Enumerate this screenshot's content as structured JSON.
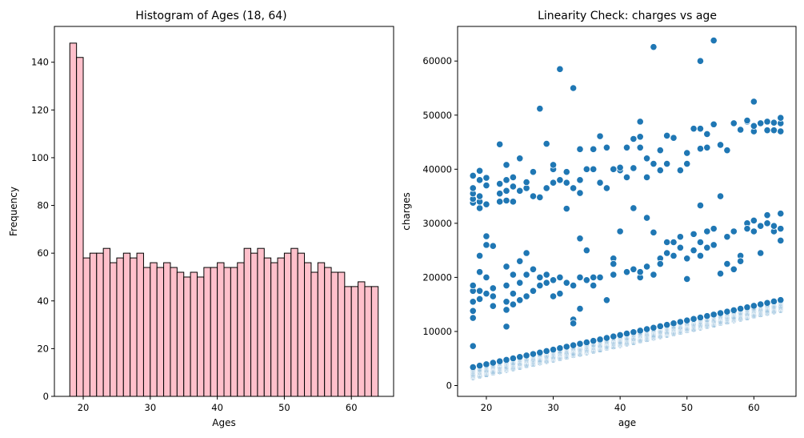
{
  "chart_data": [
    {
      "type": "bar",
      "title": "Histogram of Ages (18, 64)",
      "xlabel": "Ages",
      "ylabel": "Frequency",
      "xlim": [
        15.7,
        66.3
      ],
      "ylim": [
        0,
        155
      ],
      "xticks": [
        20,
        30,
        40,
        50,
        60
      ],
      "yticks": [
        0,
        20,
        40,
        60,
        80,
        100,
        120,
        140
      ],
      "bins": {
        "start": 18,
        "end": 64,
        "count": 46
      },
      "values": [
        148,
        142,
        58,
        60,
        60,
        62,
        56,
        58,
        60,
        58,
        60,
        54,
        56,
        54,
        56,
        54,
        52,
        50,
        52,
        50,
        54,
        54,
        56,
        54,
        54,
        56,
        62,
        60,
        62,
        58,
        56,
        58,
        60,
        62,
        60,
        56,
        52,
        56,
        54,
        52,
        52,
        46,
        46,
        48,
        46,
        46
      ],
      "bar_color": "#ffc0cb",
      "edge_color": "#000000",
      "grid": false
    },
    {
      "type": "scatter",
      "title": "Linearity Check: charges vs age",
      "xlabel": "age",
      "ylabel": "charges",
      "xlim": [
        15.7,
        66.3
      ],
      "ylim": [
        -2000,
        66400
      ],
      "xticks": [
        20,
        30,
        40,
        50,
        60
      ],
      "yticks": [
        0,
        10000,
        20000,
        30000,
        40000,
        50000,
        60000
      ],
      "point_color": "#1f77b4",
      "grid": false,
      "series": [
        {
          "y_intercept": 1600,
          "slope": 270,
          "band_width": 1800,
          "ages": [
            18,
            19,
            20,
            21,
            22,
            23,
            24,
            25,
            26,
            27,
            28,
            29,
            30,
            31,
            32,
            33,
            34,
            35,
            36,
            37,
            38,
            39,
            40,
            41,
            42,
            43,
            44,
            45,
            46,
            47,
            48,
            49,
            50,
            51,
            52,
            53,
            54,
            55,
            56,
            57,
            58,
            59,
            60,
            61,
            62,
            63,
            64
          ],
          "rows_per_age": 12
        },
        {
          "points": [
            [
              18,
              7300
            ],
            [
              18,
              12500
            ],
            [
              18,
              13800
            ],
            [
              18,
              15500
            ],
            [
              18,
              17500
            ],
            [
              18,
              18500
            ],
            [
              19,
              16000
            ],
            [
              19,
              17500
            ],
            [
              19,
              21000
            ],
            [
              19,
              24000
            ],
            [
              20,
              17000
            ],
            [
              20,
              20000
            ],
            [
              20,
              26000
            ],
            [
              20,
              27600
            ],
            [
              21,
              14700
            ],
            [
              21,
              16500
            ],
            [
              21,
              18000
            ],
            [
              21,
              25800
            ],
            [
              23,
              10900
            ],
            [
              23,
              14000
            ],
            [
              23,
              15500
            ],
            [
              23,
              18500
            ],
            [
              23,
              22000
            ],
            [
              24,
              15000
            ],
            [
              24,
              17000
            ],
            [
              24,
              20500
            ],
            [
              25,
              15800
            ],
            [
              25,
              19000
            ],
            [
              25,
              23000
            ],
            [
              26,
              16500
            ],
            [
              26,
              20500
            ],
            [
              26,
              24500
            ],
            [
              27,
              17500
            ],
            [
              27,
              21500
            ],
            [
              28,
              18500
            ],
            [
              28,
              20000
            ],
            [
              29,
              19000
            ],
            [
              29,
              20500
            ],
            [
              30,
              16500
            ],
            [
              30,
              19500
            ],
            [
              31,
              17000
            ],
            [
              31,
              20000
            ],
            [
              32,
              19000
            ],
            [
              32,
              32700
            ],
            [
              33,
              12200
            ],
            [
              33,
              11500
            ],
            [
              33,
              18500
            ],
            [
              34,
              14200
            ],
            [
              34,
              27200
            ],
            [
              34,
              20000
            ],
            [
              35,
              19500
            ],
            [
              35,
              25000
            ],
            [
              36,
              20000
            ],
            [
              36,
              18500
            ],
            [
              37,
              20000
            ],
            [
              38,
              15800
            ],
            [
              39,
              20500
            ],
            [
              39,
              23500
            ],
            [
              39,
              22500
            ],
            [
              40,
              28500
            ],
            [
              41,
              21000
            ],
            [
              42,
              21500
            ],
            [
              42,
              32800
            ],
            [
              43,
              20000
            ],
            [
              43,
              21000
            ],
            [
              44,
              22000
            ],
            [
              44,
              31000
            ],
            [
              45,
              20500
            ],
            [
              45,
              28300
            ],
            [
              46,
              23500
            ],
            [
              46,
              22500
            ],
            [
              47,
              24500
            ],
            [
              47,
              26500
            ],
            [
              48,
              24000
            ],
            [
              48,
              26500
            ],
            [
              49,
              25500
            ],
            [
              49,
              27500
            ],
            [
              50,
              23500
            ],
            [
              50,
              19700
            ],
            [
              51,
              25000
            ],
            [
              51,
              28000
            ],
            [
              52,
              24000
            ],
            [
              52,
              26500
            ],
            [
              52,
              33300
            ],
            [
              53,
              25500
            ],
            [
              53,
              28500
            ],
            [
              54,
              26000
            ],
            [
              54,
              29000
            ],
            [
              55,
              20700
            ],
            [
              55,
              35000
            ],
            [
              56,
              22500
            ],
            [
              56,
              27500
            ],
            [
              57,
              21500
            ],
            [
              57,
              28500
            ],
            [
              58,
              24000
            ],
            [
              58,
              23000
            ],
            [
              59,
              30000
            ],
            [
              59,
              29000
            ],
            [
              60,
              28500
            ],
            [
              60,
              30500
            ],
            [
              61,
              24500
            ],
            [
              61,
              29500
            ],
            [
              62,
              30000
            ],
            [
              62,
              31500
            ],
            [
              63,
              28500
            ],
            [
              63,
              29500
            ],
            [
              64,
              26800
            ],
            [
              64,
              29000
            ],
            [
              64,
              31800
            ]
          ]
        },
        {
          "points": [
            [
              18,
              33800
            ],
            [
              18,
              34500
            ],
            [
              18,
              35500
            ],
            [
              18,
              36500
            ],
            [
              18,
              38800
            ],
            [
              19,
              32800
            ],
            [
              19,
              34000
            ],
            [
              19,
              35000
            ],
            [
              19,
              38000
            ],
            [
              19,
              39700
            ],
            [
              20,
              33500
            ],
            [
              20,
              37000
            ],
            [
              20,
              38400
            ],
            [
              22,
              34000
            ],
            [
              22,
              35500
            ],
            [
              22,
              37300
            ],
            [
              22,
              44600
            ],
            [
              23,
              34200
            ],
            [
              23,
              36000
            ],
            [
              23,
              38000
            ],
            [
              23,
              40800
            ],
            [
              24,
              34000
            ],
            [
              24,
              36800
            ],
            [
              24,
              38500
            ],
            [
              25,
              36000
            ],
            [
              25,
              42000
            ],
            [
              26,
              36500
            ],
            [
              26,
              37600
            ],
            [
              27,
              35000
            ],
            [
              27,
              39500
            ],
            [
              28,
              34800
            ],
            [
              28,
              51200
            ],
            [
              29,
              36500
            ],
            [
              29,
              44700
            ],
            [
              30,
              37500
            ],
            [
              30,
              40000
            ],
            [
              30,
              40800
            ],
            [
              31,
              38000
            ],
            [
              31,
              58500
            ],
            [
              32,
              37500
            ],
            [
              32,
              39500
            ],
            [
              33,
              36500
            ],
            [
              33,
              55000
            ],
            [
              34,
              35600
            ],
            [
              34,
              43700
            ],
            [
              34,
              38000
            ],
            [
              35,
              40000
            ],
            [
              36,
              40000
            ],
            [
              36,
              43700
            ],
            [
              37,
              37500
            ],
            [
              37,
              46100
            ],
            [
              38,
              44000
            ],
            [
              38,
              36500
            ],
            [
              39,
              40000
            ],
            [
              40,
              39800
            ],
            [
              40,
              40300
            ],
            [
              41,
              44000
            ],
            [
              41,
              38500
            ],
            [
              42,
              40200
            ],
            [
              42,
              45600
            ],
            [
              43,
              44000
            ],
            [
              43,
              46000
            ],
            [
              43,
              48800
            ],
            [
              44,
              38500
            ],
            [
              44,
              42000
            ],
            [
              45,
              62600
            ],
            [
              45,
              41000
            ],
            [
              46,
              43500
            ],
            [
              46,
              39800
            ],
            [
              47,
              46200
            ],
            [
              47,
              41000
            ],
            [
              48,
              45800
            ],
            [
              49,
              39800
            ],
            [
              50,
              41000
            ],
            [
              50,
              43000
            ],
            [
              51,
              47500
            ],
            [
              52,
              47500
            ],
            [
              52,
              60000
            ],
            [
              52,
              43800
            ],
            [
              53,
              44000
            ],
            [
              53,
              46500
            ],
            [
              54,
              63800
            ],
            [
              54,
              48300
            ],
            [
              55,
              44500
            ],
            [
              56,
              43500
            ],
            [
              57,
              48500
            ],
            [
              58,
              47300
            ],
            [
              59,
              48800
            ],
            [
              59,
              49000
            ],
            [
              60,
              47000
            ],
            [
              60,
              48000
            ],
            [
              60,
              52500
            ],
            [
              61,
              48500
            ],
            [
              62,
              47200
            ],
            [
              62,
              48800
            ],
            [
              63,
              47200
            ],
            [
              63,
              48600
            ],
            [
              64,
              47000
            ],
            [
              64,
              48500
            ],
            [
              64,
              49500
            ]
          ]
        }
      ]
    }
  ]
}
